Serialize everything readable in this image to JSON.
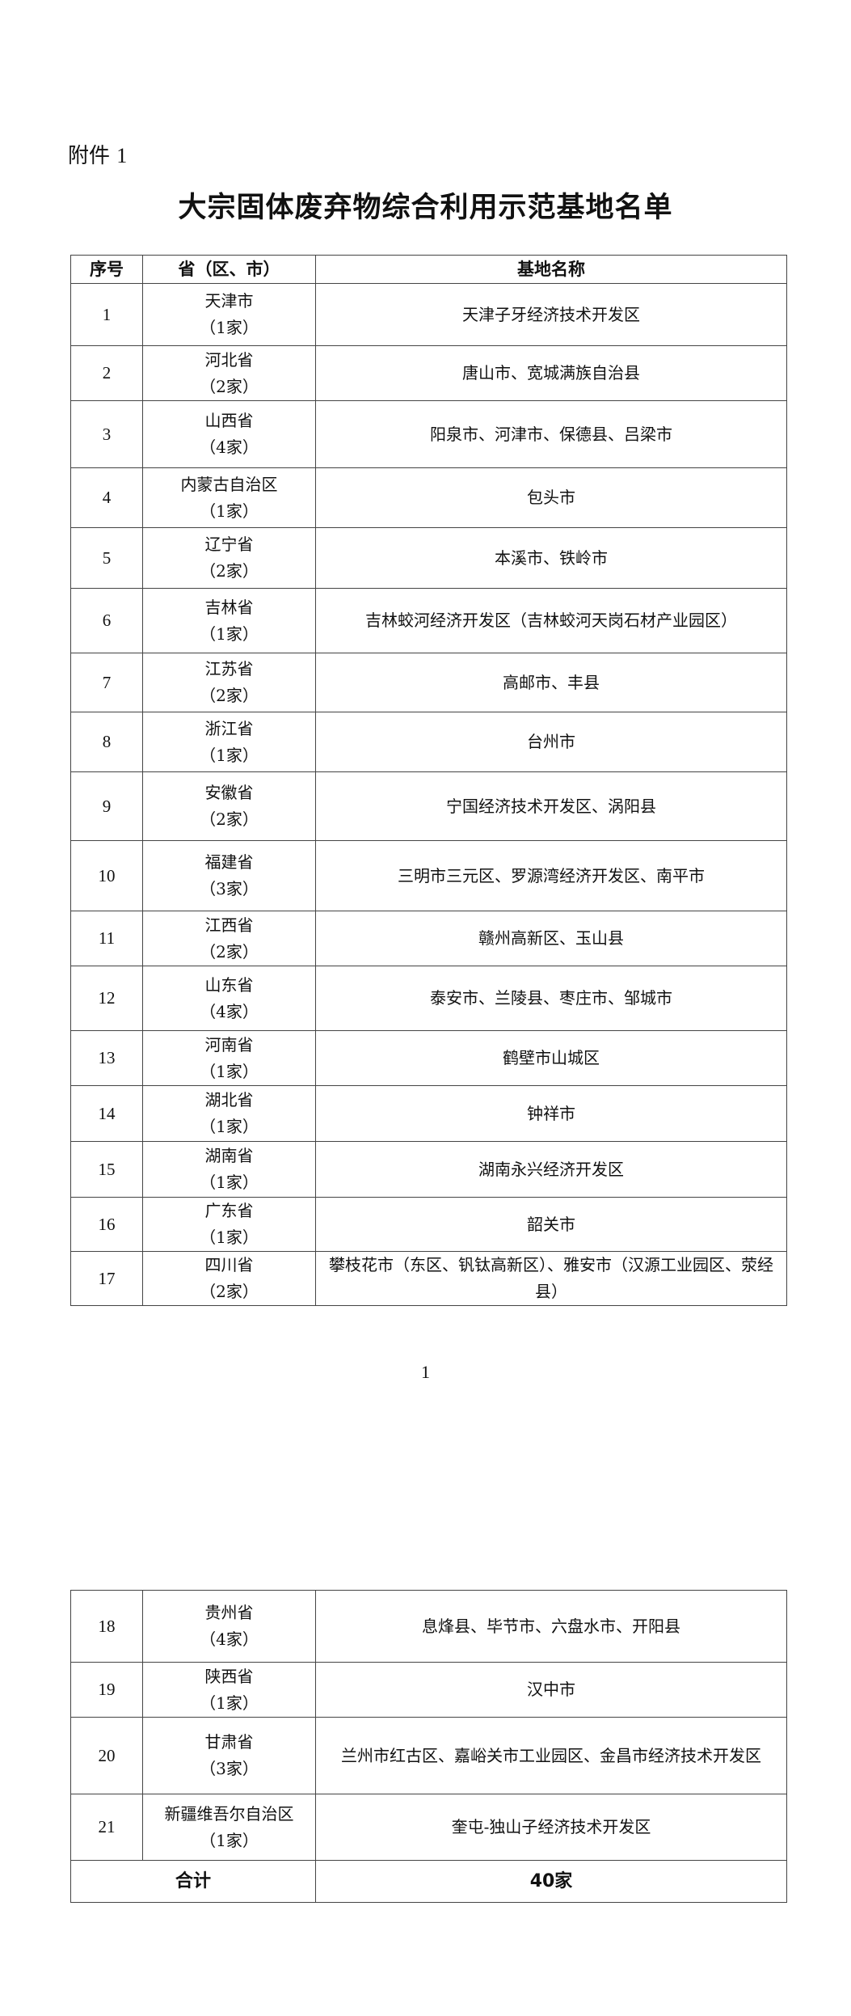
{
  "attachment_label": "附件",
  "attachment_number": "1",
  "title": "大宗固体废弃物综合利用示范基地名单",
  "headers": {
    "no": "序号",
    "province": "省（区、市）",
    "base": "基地名称"
  },
  "rows": [
    {
      "no": "1",
      "province": "天津市",
      "count": "（1家）",
      "base": "天津子牙经济技术开发区"
    },
    {
      "no": "2",
      "province": "河北省",
      "count": "（2家）",
      "base": "唐山市、宽城满族自治县"
    },
    {
      "no": "3",
      "province": "山西省",
      "count": "（4家）",
      "base": "阳泉市、河津市、保德县、吕梁市"
    },
    {
      "no": "4",
      "province": "内蒙古自治区",
      "count": "（1家）",
      "base": "包头市"
    },
    {
      "no": "5",
      "province": "辽宁省",
      "count": "（2家）",
      "base": "本溪市、铁岭市"
    },
    {
      "no": "6",
      "province": "吉林省",
      "count": "（1家）",
      "base": "吉林蛟河经济开发区（吉林蛟河天岗石材产业园区）"
    },
    {
      "no": "7",
      "province": "江苏省",
      "count": "（2家）",
      "base": "高邮市、丰县"
    },
    {
      "no": "8",
      "province": "浙江省",
      "count": "（1家）",
      "base": "台州市"
    },
    {
      "no": "9",
      "province": "安徽省",
      "count": "（2家）",
      "base": "宁国经济技术开发区、涡阳县"
    },
    {
      "no": "10",
      "province": "福建省",
      "count": "（3家）",
      "base": "三明市三元区、罗源湾经济开发区、南平市"
    },
    {
      "no": "11",
      "province": "江西省",
      "count": "（2家）",
      "base": "赣州高新区、玉山县"
    },
    {
      "no": "12",
      "province": "山东省",
      "count": "（4家）",
      "base": "泰安市、兰陵县、枣庄市、邹城市"
    },
    {
      "no": "13",
      "province": "河南省",
      "count": "（1家）",
      "base": "鹤壁市山城区"
    },
    {
      "no": "14",
      "province": "湖北省",
      "count": "（1家）",
      "base": "钟祥市"
    },
    {
      "no": "15",
      "province": "湖南省",
      "count": "（1家）",
      "base": "湖南永兴经济开发区"
    },
    {
      "no": "16",
      "province": "广东省",
      "count": "（1家）",
      "base": "韶关市"
    },
    {
      "no": "17",
      "province": "四川省",
      "count": "（2家）",
      "base": "攀枝花市（东区、钒钛高新区）、雅安市（汉源工业园区、荥经县）"
    },
    {
      "no": "18",
      "province": "贵州省",
      "count": "（4家）",
      "base": "息烽县、毕节市、六盘水市、开阳县"
    },
    {
      "no": "19",
      "province": "陕西省",
      "count": "（1家）",
      "base": "汉中市"
    },
    {
      "no": "20",
      "province": "甘肃省",
      "count": "（3家）",
      "base": "兰州市红古区、嘉峪关市工业园区、金昌市经济技术开发区"
    },
    {
      "no": "21",
      "province": "新疆维吾尔自治区",
      "count": "（1家）",
      "base": "奎屯-独山子经济技术开发区"
    }
  ],
  "total": {
    "label": "合计",
    "value": "40家"
  },
  "page_number": "1"
}
